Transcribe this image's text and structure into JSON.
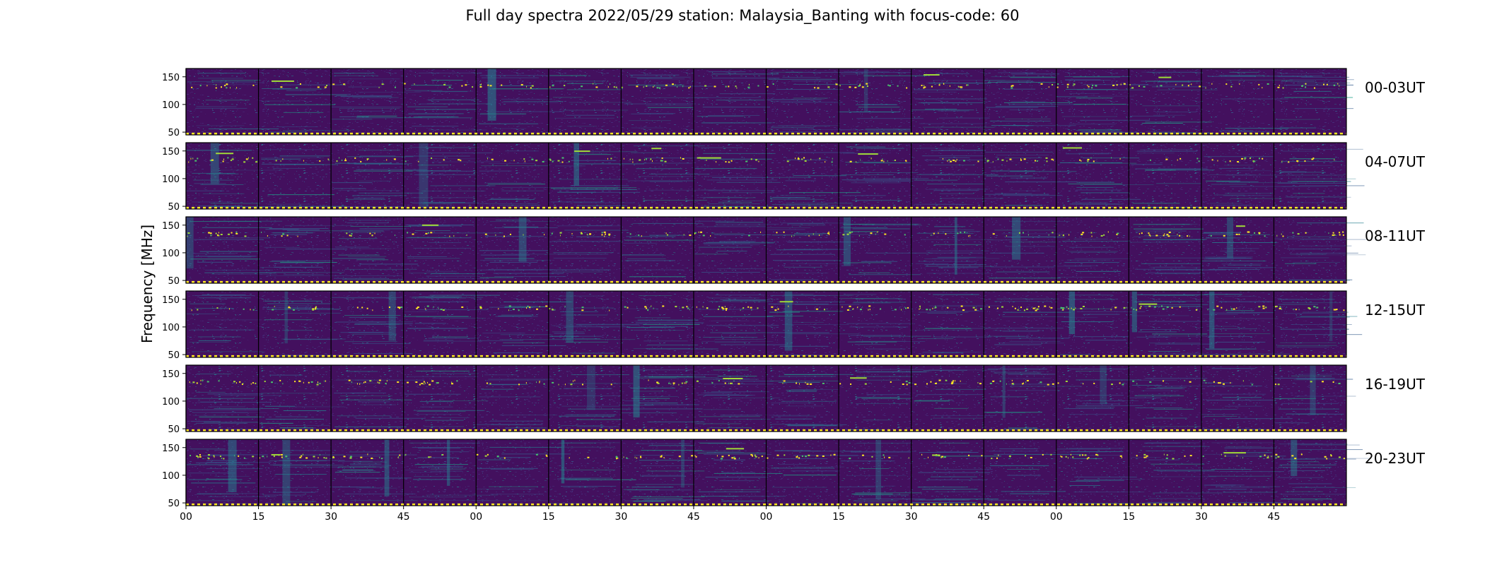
{
  "chart_data": {
    "type": "heatmap",
    "title": "Full day spectra 2022/05/29 station: Malaysia_Banting with focus-code: 60",
    "ylabel": "Frequency [MHz]",
    "xlabel": "",
    "ylim": [
      45,
      165
    ],
    "yticks": [
      50,
      100,
      150
    ],
    "xticks": [
      "00",
      "15",
      "30",
      "45",
      "00",
      "15",
      "30",
      "45",
      "00",
      "15",
      "30",
      "45",
      "00",
      "15",
      "30",
      "45"
    ],
    "segments_per_row": 16,
    "segment_minutes": 15,
    "colormap": "viridis",
    "rows": [
      {
        "label": "00-03UT"
      },
      {
        "label": "04-07UT"
      },
      {
        "label": "08-11UT"
      },
      {
        "label": "12-15UT"
      },
      {
        "label": "16-19UT"
      },
      {
        "label": "20-23UT"
      }
    ],
    "features": {
      "persistent_band_mhz": 135,
      "band_marker_mhz": 47
    }
  }
}
